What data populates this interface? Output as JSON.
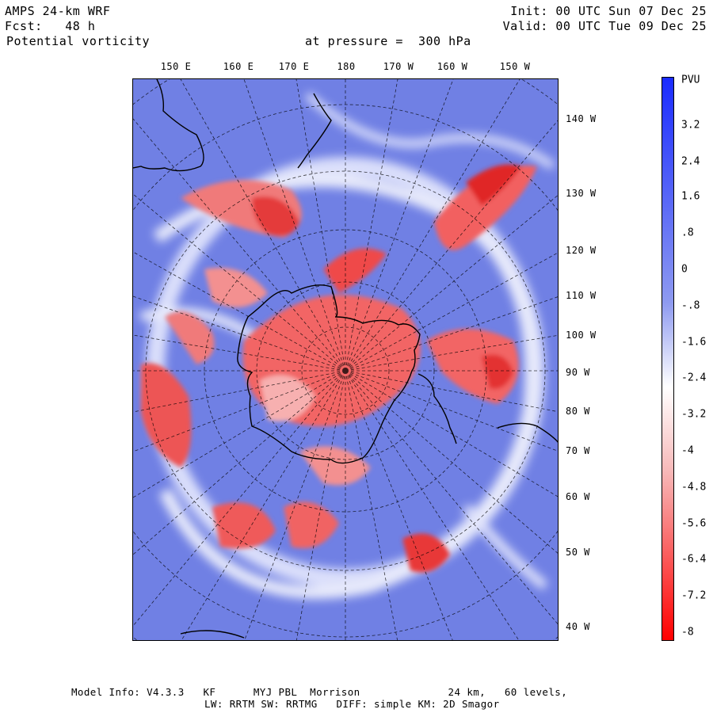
{
  "header": {
    "model": "AMPS 24-km WRF",
    "forecast": "Fcst:   48 h",
    "field": "Potential vorticity",
    "pressure": "at pressure =  300 hPa",
    "init": "Init: 00 UTC Sun 07 Dec 25",
    "valid": "Valid: 00 UTC Tue 09 Dec 25"
  },
  "map": {
    "top_longitudes": [
      "150 E",
      "160 E",
      "170 E",
      "180",
      "170 W",
      "160 W",
      "150 W"
    ],
    "right_longitudes": [
      "140 W",
      "130 W",
      "120 W",
      "110 W",
      "100 W",
      "90 W",
      "80 W",
      "70 W",
      "60 W",
      "50 W",
      "40 W"
    ],
    "colors": {
      "positive": "#4d5ce0",
      "background_blue": "#6f7fe6",
      "negative": "#ef2a2a",
      "neutral": "#ffffff"
    }
  },
  "colorbar": {
    "unit": "PVU",
    "labels": [
      "3.2",
      "2.4",
      "1.6",
      ".8",
      "0",
      "-.8",
      "-1.6",
      "-2.4",
      "-3.2",
      "-4",
      "-4.8",
      "-5.6",
      "-6.4",
      "-7.2",
      "-8"
    ],
    "top_color": "#1a2bff",
    "bottom_color": "#ff0000"
  },
  "footer": {
    "line1": "Model Info: V4.3.3   KF      MYJ PBL  Morrison              24 km,   60 levels,",
    "line2": "LW: RRTM SW: RRTMG   DIFF: simple KM: 2D Smagor"
  }
}
